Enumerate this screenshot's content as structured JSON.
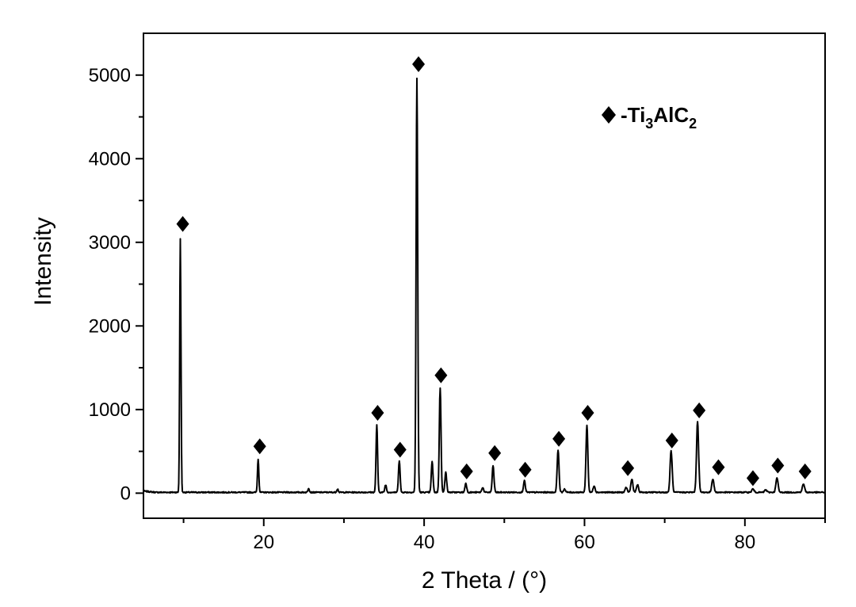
{
  "chart_data": {
    "type": "line",
    "xlabel": "2 Theta / (°)",
    "ylabel": "Intensity",
    "xlim": [
      5,
      90
    ],
    "ylim": [
      -300,
      5500
    ],
    "xticks": [
      20,
      40,
      60,
      80
    ],
    "yticks": [
      0,
      1000,
      2000,
      3000,
      4000,
      5000
    ],
    "grid": false,
    "legend": {
      "placement": "top-right",
      "marker": "diamond",
      "label": "-Ti3AlC2",
      "label_parts": [
        "-Ti",
        "3",
        "AlC",
        "2"
      ]
    },
    "series_color": "#000000",
    "peaks": [
      {
        "x": 9.6,
        "y": 3030,
        "marked": true
      },
      {
        "x": 19.3,
        "y": 400,
        "marked": true
      },
      {
        "x": 25.6,
        "y": 50,
        "marked": false
      },
      {
        "x": 29.2,
        "y": 40,
        "marked": false
      },
      {
        "x": 34.1,
        "y": 810,
        "marked": true
      },
      {
        "x": 35.2,
        "y": 90,
        "marked": false
      },
      {
        "x": 36.9,
        "y": 380,
        "marked": true
      },
      {
        "x": 39.1,
        "y": 4950,
        "marked": true
      },
      {
        "x": 41.0,
        "y": 370,
        "marked": false
      },
      {
        "x": 42.0,
        "y": 1250,
        "marked": true
      },
      {
        "x": 42.7,
        "y": 250,
        "marked": false
      },
      {
        "x": 45.2,
        "y": 110,
        "marked": true
      },
      {
        "x": 47.3,
        "y": 60,
        "marked": false
      },
      {
        "x": 48.6,
        "y": 320,
        "marked": true
      },
      {
        "x": 52.5,
        "y": 140,
        "marked": true
      },
      {
        "x": 56.7,
        "y": 510,
        "marked": true
      },
      {
        "x": 57.5,
        "y": 40,
        "marked": false
      },
      {
        "x": 60.3,
        "y": 800,
        "marked": true
      },
      {
        "x": 61.2,
        "y": 80,
        "marked": false
      },
      {
        "x": 65.2,
        "y": 60,
        "marked": false
      },
      {
        "x": 65.9,
        "y": 160,
        "marked": true
      },
      {
        "x": 66.6,
        "y": 90,
        "marked": false
      },
      {
        "x": 70.8,
        "y": 500,
        "marked": true
      },
      {
        "x": 74.1,
        "y": 850,
        "marked": true
      },
      {
        "x": 76.0,
        "y": 160,
        "marked": true
      },
      {
        "x": 81.0,
        "y": 40,
        "marked": true
      },
      {
        "x": 82.6,
        "y": 30,
        "marked": false
      },
      {
        "x": 84.0,
        "y": 170,
        "marked": true
      },
      {
        "x": 87.3,
        "y": 100,
        "marked": true
      }
    ],
    "diamond_markers": [
      {
        "x": 9.9,
        "y": 3220
      },
      {
        "x": 19.5,
        "y": 560
      },
      {
        "x": 34.2,
        "y": 960
      },
      {
        "x": 37.0,
        "y": 520
      },
      {
        "x": 39.3,
        "y": 5130
      },
      {
        "x": 42.1,
        "y": 1410
      },
      {
        "x": 45.3,
        "y": 260
      },
      {
        "x": 48.8,
        "y": 480
      },
      {
        "x": 52.6,
        "y": 280
      },
      {
        "x": 56.8,
        "y": 650
      },
      {
        "x": 60.4,
        "y": 960
      },
      {
        "x": 65.4,
        "y": 300
      },
      {
        "x": 70.9,
        "y": 630
      },
      {
        "x": 74.3,
        "y": 990
      },
      {
        "x": 76.7,
        "y": 310
      },
      {
        "x": 81.0,
        "y": 180
      },
      {
        "x": 84.1,
        "y": 330
      },
      {
        "x": 87.5,
        "y": 260
      }
    ]
  }
}
